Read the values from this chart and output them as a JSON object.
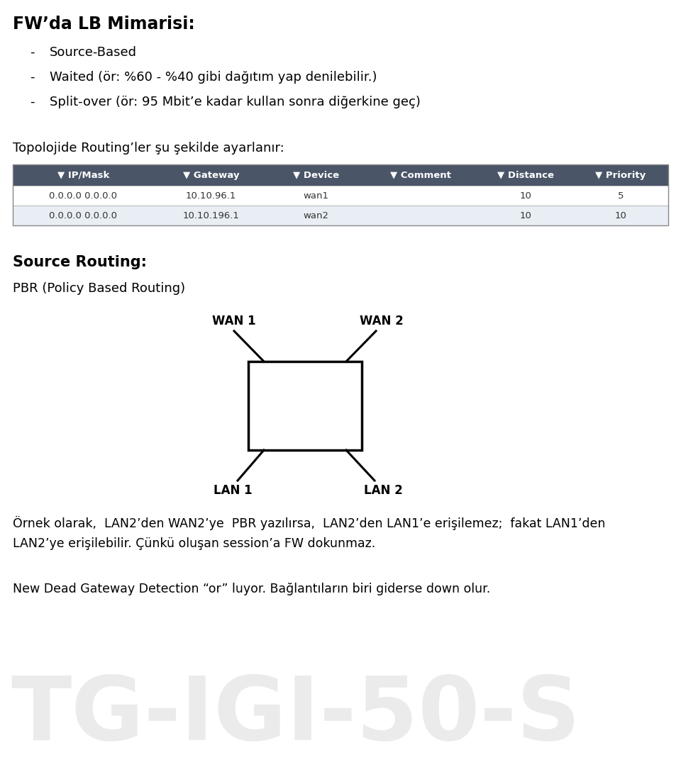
{
  "title": "FW’da LB Mimarisi:",
  "bullet1": "Source-Based",
  "bullet2": "Waited (ör: %60 - %40 gibi dağıtım yap denilebilir.)",
  "bullet3": "Split-over (ör: 95 Mbit’e kadar kullan sonra diğerkine geç)",
  "topo_label": "Topolojide Routing’ler şu şekilde ayarlanır:",
  "table_header": [
    "IP/Mask",
    "Gateway",
    "Device",
    "Comment",
    "Distance",
    "Priority"
  ],
  "table_row1": [
    "0.0.0.0 0.0.0.0",
    "10.10.96.1",
    "wan1",
    "",
    "10",
    "5"
  ],
  "table_row2": [
    "0.0.0.0 0.0.0.0",
    "10.10.196.1",
    "wan2",
    "",
    "10",
    "10"
  ],
  "header_bg": "#4a5568",
  "row1_bg": "#ffffff",
  "row2_bg": "#e8eef4",
  "source_routing_label": "Source Routing:",
  "pbr_label": "PBR (Policy Based Routing)",
  "wan1_label": "WAN 1",
  "wan2_label": "WAN 2",
  "lan1_label": "LAN 1",
  "lan2_label": "LAN 2",
  "example_text1": "Örnek olarak,  LAN2’den WAN2’ye  PBR yazılırsa,  LAN2’den LAN1’e erişilemez;  fakat LAN1’den",
  "example_text2": "LAN2’ye erişilebilir. Çünkü oluşan session’a FW dokunmaz.",
  "new_dead_text": "New Dead Gateway Detection “or” luyor. Bağlantıların biri giderse down olur.",
  "watermark": "TG-IGI-50-S",
  "bg_color": "#ffffff",
  "text_color": "#000000",
  "header_text_color": "#ffffff"
}
